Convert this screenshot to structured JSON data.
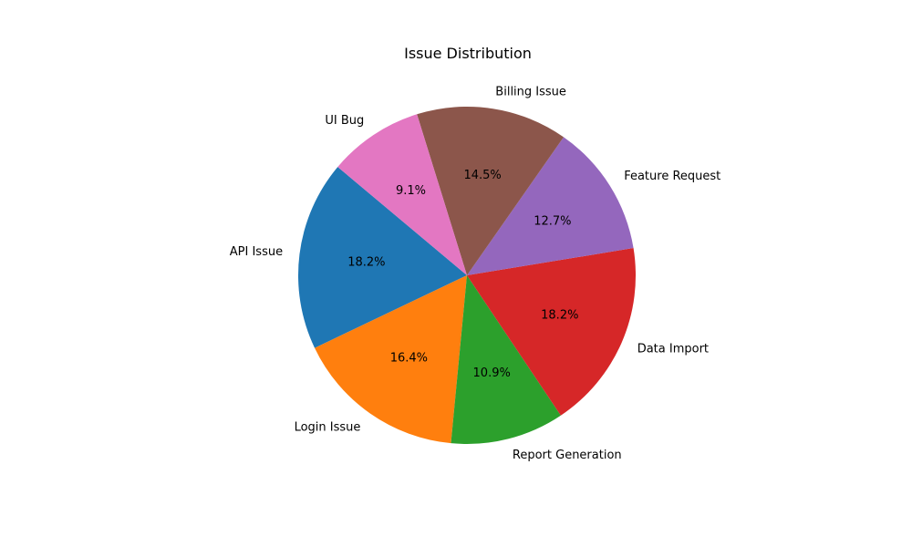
{
  "chart_data": {
    "type": "pie",
    "title": "Issue Distribution",
    "start_angle": 140,
    "direction": "counterclockwise",
    "slices": [
      {
        "label": "API Issue",
        "value": 18.2,
        "pct_label": "18.2%",
        "color": "#1f77b4"
      },
      {
        "label": "Login Issue",
        "value": 16.4,
        "pct_label": "16.4%",
        "color": "#ff7f0e"
      },
      {
        "label": "Report Generation",
        "value": 10.9,
        "pct_label": "10.9%",
        "color": "#2ca02c"
      },
      {
        "label": "Data Import",
        "value": 18.2,
        "pct_label": "18.2%",
        "color": "#d62728"
      },
      {
        "label": "Feature Request",
        "value": 12.7,
        "pct_label": "12.7%",
        "color": "#9467bd"
      },
      {
        "label": "Billing Issue",
        "value": 14.5,
        "pct_label": "14.5%",
        "color": "#8c564b"
      },
      {
        "label": "UI Bug",
        "value": 9.1,
        "pct_label": "9.1%",
        "color": "#e377c2"
      }
    ]
  }
}
